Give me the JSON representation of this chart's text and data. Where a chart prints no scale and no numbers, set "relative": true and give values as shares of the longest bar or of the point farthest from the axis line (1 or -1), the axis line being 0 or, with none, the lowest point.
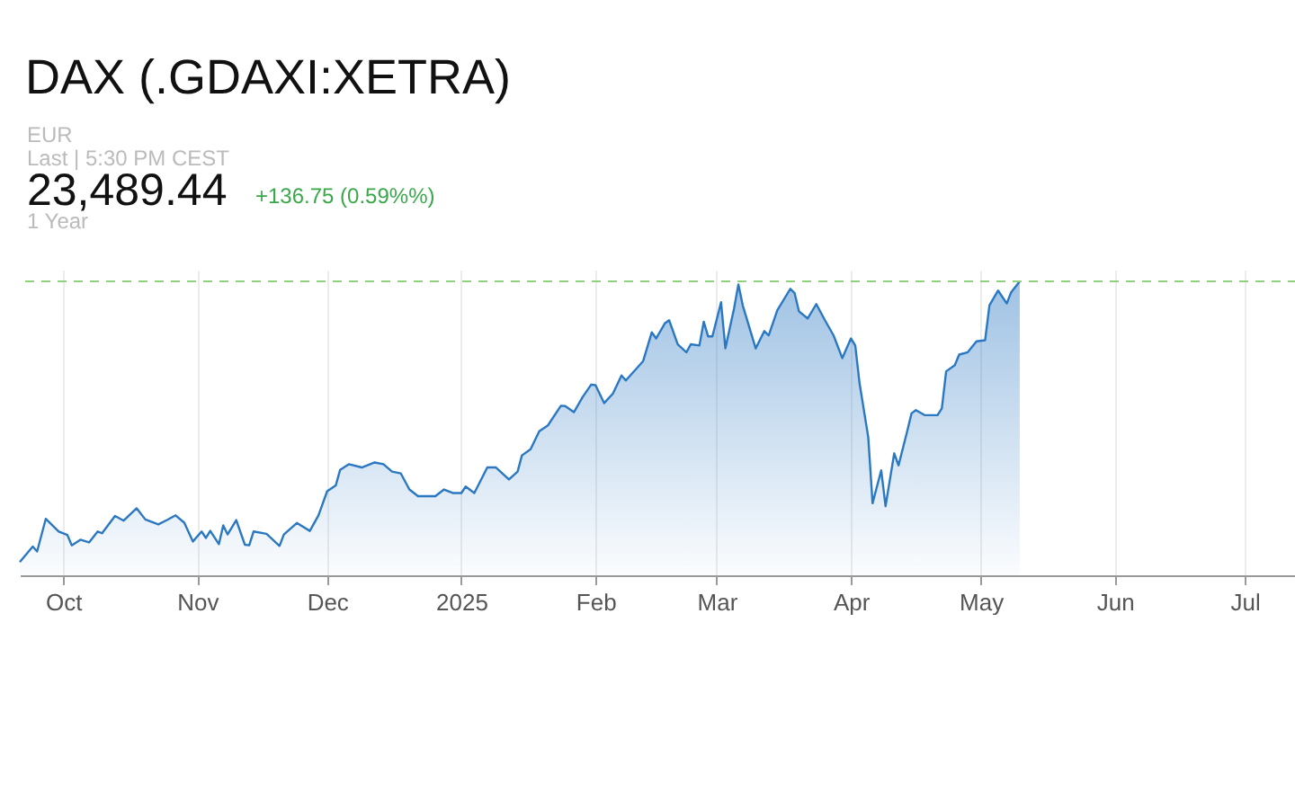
{
  "chart_data": {
    "type": "area",
    "title": "DAX (.GDAXI:XETRA)",
    "relative": true,
    "annotations": [
      "EUR",
      "Last | 5:30 PM CEST",
      "23,489.44",
      "+136.75 (0.59%%)",
      "1 Year"
    ],
    "x": [
      "2024-09-21",
      "2024-09-24",
      "2024-09-25",
      "2024-09-27",
      "2024-09-30",
      "2024-10-02",
      "2024-10-03",
      "2024-10-05",
      "2024-10-07",
      "2024-10-09",
      "2024-10-10",
      "2024-10-13",
      "2024-10-15",
      "2024-10-18",
      "2024-10-20",
      "2024-10-23",
      "2024-10-25",
      "2024-10-27",
      "2024-10-29",
      "2024-10-31",
      "2024-11-02",
      "2024-11-03",
      "2024-11-04",
      "2024-11-06",
      "2024-11-07",
      "2024-11-08",
      "2024-11-10",
      "2024-11-12",
      "2024-11-13",
      "2024-11-14",
      "2024-11-17",
      "2024-11-20",
      "2024-11-21",
      "2024-11-24",
      "2024-11-27",
      "2024-11-29",
      "2024-12-01",
      "2024-12-03",
      "2024-12-04",
      "2024-12-06",
      "2024-12-09",
      "2024-12-12",
      "2024-12-14",
      "2024-12-16",
      "2024-12-18",
      "2024-12-20",
      "2024-12-22",
      "2024-12-26",
      "2024-12-28",
      "2024-12-30",
      "2025-01-01",
      "2025-01-02",
      "2025-01-04",
      "2025-01-07",
      "2025-01-09",
      "2025-01-12",
      "2025-01-14",
      "2025-01-15",
      "2025-01-17",
      "2025-01-19",
      "2025-01-21",
      "2025-01-24",
      "2025-01-25",
      "2025-01-27",
      "2025-01-29",
      "2025-01-31",
      "2025-02-01",
      "2025-02-03",
      "2025-02-05",
      "2025-02-07",
      "2025-02-08",
      "2025-02-12",
      "2025-02-14",
      "2025-02-15",
      "2025-02-17",
      "2025-02-18",
      "2025-02-20",
      "2025-02-22",
      "2025-02-23",
      "2025-02-25",
      "2025-02-26",
      "2025-02-27",
      "2025-02-28",
      "2025-03-02",
      "2025-03-03",
      "2025-03-05",
      "2025-03-06",
      "2025-03-07",
      "2025-03-10",
      "2025-03-12",
      "2025-03-13",
      "2025-03-15",
      "2025-03-18",
      "2025-03-19",
      "2025-03-20",
      "2025-03-22",
      "2025-03-24",
      "2025-03-26",
      "2025-03-28",
      "2025-03-30",
      "2025-04-01",
      "2025-04-02",
      "2025-04-03",
      "2025-04-05",
      "2025-04-06",
      "2025-04-08",
      "2025-04-09",
      "2025-04-11",
      "2025-04-12",
      "2025-04-14",
      "2025-04-15",
      "2025-04-16",
      "2025-04-18",
      "2025-04-21",
      "2025-04-22",
      "2025-04-23",
      "2025-04-25",
      "2025-04-26",
      "2025-04-28",
      "2025-04-30",
      "2025-05-02",
      "2025-05-03",
      "2025-05-05",
      "2025-05-07",
      "2025-05-08",
      "2025-05-10"
    ],
    "series": [
      {
        "color": "#2b78c2",
        "values": [
          0.045,
          0.098,
          0.081,
          0.192,
          0.149,
          0.137,
          0.102,
          0.121,
          0.112,
          0.149,
          0.143,
          0.202,
          0.186,
          0.228,
          0.19,
          0.173,
          0.188,
          0.204,
          0.179,
          0.115,
          0.149,
          0.127,
          0.151,
          0.106,
          0.17,
          0.139,
          0.188,
          0.104,
          0.102,
          0.149,
          0.141,
          0.1,
          0.139,
          0.178,
          0.151,
          0.204,
          0.286,
          0.306,
          0.359,
          0.378,
          0.367,
          0.384,
          0.378,
          0.353,
          0.347,
          0.292,
          0.269,
          0.269,
          0.292,
          0.28,
          0.28,
          0.302,
          0.28,
          0.367,
          0.367,
          0.326,
          0.353,
          0.408,
          0.429,
          0.49,
          0.51,
          0.577,
          0.576,
          0.555,
          0.606,
          0.649,
          0.647,
          0.586,
          0.618,
          0.68,
          0.663,
          0.729,
          0.827,
          0.806,
          0.857,
          0.868,
          0.786,
          0.759,
          0.786,
          0.782,
          0.863,
          0.813,
          0.813,
          0.929,
          0.772,
          0.908,
          0.99,
          0.919,
          0.772,
          0.831,
          0.816,
          0.902,
          0.975,
          0.96,
          0.898,
          0.874,
          0.923,
          0.868,
          0.816,
          0.739,
          0.806,
          0.782,
          0.653,
          0.47,
          0.245,
          0.357,
          0.235,
          0.415,
          0.374,
          0.49,
          0.551,
          0.562,
          0.545,
          0.545,
          0.568,
          0.694,
          0.715,
          0.751,
          0.759,
          0.796,
          0.8,
          0.919,
          0.969,
          0.925,
          0.963,
          1.0
        ]
      }
    ],
    "xlim": [
      "2024-09-21",
      "2025-07-13"
    ],
    "xticks": [
      {
        "value": "2024-10-01",
        "label": "Oct"
      },
      {
        "value": "2024-11-01",
        "label": "Nov"
      },
      {
        "value": "2024-12-01",
        "label": "Dec"
      },
      {
        "value": "2025-01-01",
        "label": "2025"
      },
      {
        "value": "2025-02-01",
        "label": "Feb"
      },
      {
        "value": "2025-03-01",
        "label": "Mar"
      },
      {
        "value": "2025-04-01",
        "label": "Apr"
      },
      {
        "value": "2025-05-01",
        "label": "May"
      },
      {
        "value": "2025-06-01",
        "label": "Jun"
      },
      {
        "value": "2025-07-01",
        "label": "Jul"
      }
    ],
    "ref_lines": [
      {
        "axis": "y",
        "value": 1.0,
        "color": "#8fd07a",
        "line_style": "dashed"
      }
    ],
    "grid": "x"
  }
}
